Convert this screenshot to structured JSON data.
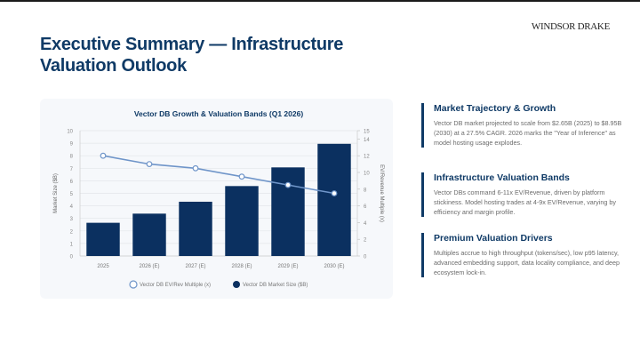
{
  "header": {
    "brand": "WINDSOR DRAKE",
    "title": "Executive Summary — Infrastructure Valuation Outlook"
  },
  "sections": [
    {
      "heading": "Market Trajectory & Growth",
      "body": "Vector DB market projected to scale from $2.65B (2025) to $8.95B (2030) at a 27.5% CAGR. 2026 marks the \"Year of Inference\" as model hosting usage explodes."
    },
    {
      "heading": "Infrastructure Valuation Bands",
      "body": "Vector DBs command 6-11x EV/Revenue, driven by platform stickiness. Model hosting trades at 4-9x EV/Revenue, varying by efficiency and margin profile."
    },
    {
      "heading": "Premium Valuation Drivers",
      "body": "Multiples accrue to high throughput (tokens/sec), low p95 latency, advanced embedding support, data locality compliance, and deep ecosystem lock-in."
    }
  ],
  "colors": {
    "bar": "#0b3060",
    "line": "#6f95c9",
    "title": "#0f3a66"
  },
  "chart_data": {
    "type": "bar",
    "title": "Vector DB Growth & Valuation Bands (Q1 2026)",
    "categories": [
      "2025",
      "2026 (E)",
      "2027 (E)",
      "2028 (E)",
      "2029 (E)",
      "2030 (E)"
    ],
    "series": [
      {
        "name": "Vector DB Market Size ($B)",
        "type": "bar",
        "axis": "left",
        "values": [
          2.65,
          3.38,
          4.33,
          5.58,
          7.07,
          8.95
        ]
      },
      {
        "name": "Vector DB EV/Rev Multiple (x)",
        "type": "line",
        "axis": "right",
        "values": [
          12,
          11,
          10.5,
          9.5,
          8.5,
          7.5
        ]
      }
    ],
    "ylabel": "Market Size ($B)",
    "y2label": "EV/Revenue Multiple (x)",
    "ylim": [
      0,
      10
    ],
    "y2lim": [
      0,
      15
    ],
    "yticks": [
      "0",
      "1",
      "2",
      "3",
      "4",
      "5",
      "6",
      "7",
      "8",
      "9",
      "10"
    ],
    "y2ticks": [
      "0",
      "2",
      "4",
      "6",
      "8",
      "10",
      "12",
      "14",
      "15"
    ],
    "legend": [
      "Vector DB EV/Rev Multiple (x)",
      "Vector DB Market Size ($B)"
    ],
    "legend_position": "bottom",
    "grid": true
  }
}
